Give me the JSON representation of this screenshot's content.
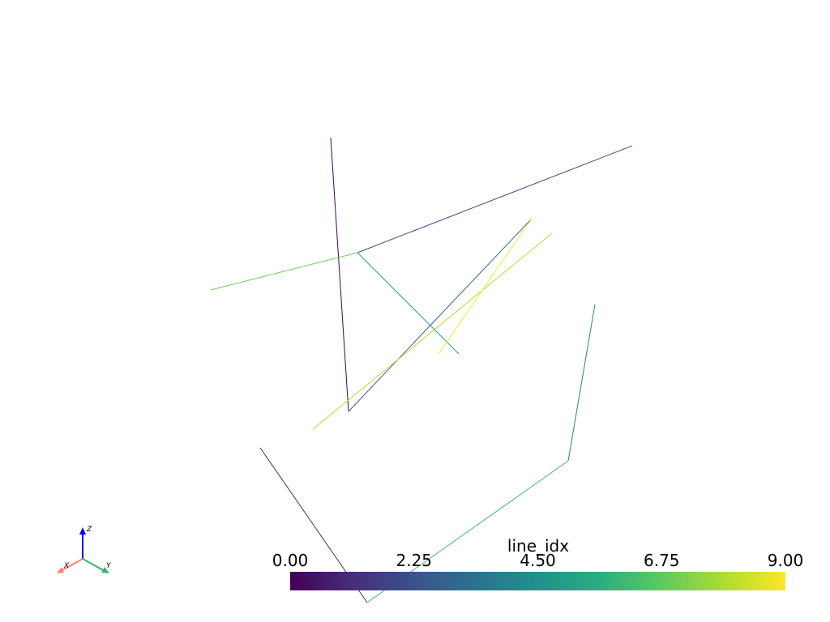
{
  "scalar_bar": {
    "title": "line_idx",
    "clim": [
      0,
      9
    ],
    "ticks": [
      {
        "value": 0,
        "label": "0.00"
      },
      {
        "value": 2.25,
        "label": "2.25"
      },
      {
        "value": 4.5,
        "label": "4.50"
      },
      {
        "value": 6.75,
        "label": "6.75"
      },
      {
        "value": 9,
        "label": "9.00"
      }
    ]
  },
  "lines": [
    {
      "line_idx": 0
    },
    {
      "line_idx": 1
    },
    {
      "line_idx": 2
    },
    {
      "line_idx": 3
    },
    {
      "line_idx": 4
    },
    {
      "line_idx": 5
    },
    {
      "line_idx": 6
    },
    {
      "line_idx": 7
    },
    {
      "line_idx": 8
    },
    {
      "line_idx": 9
    }
  ],
  "axes_widget": {
    "x": "X",
    "y": "Y",
    "z": "Z"
  }
}
